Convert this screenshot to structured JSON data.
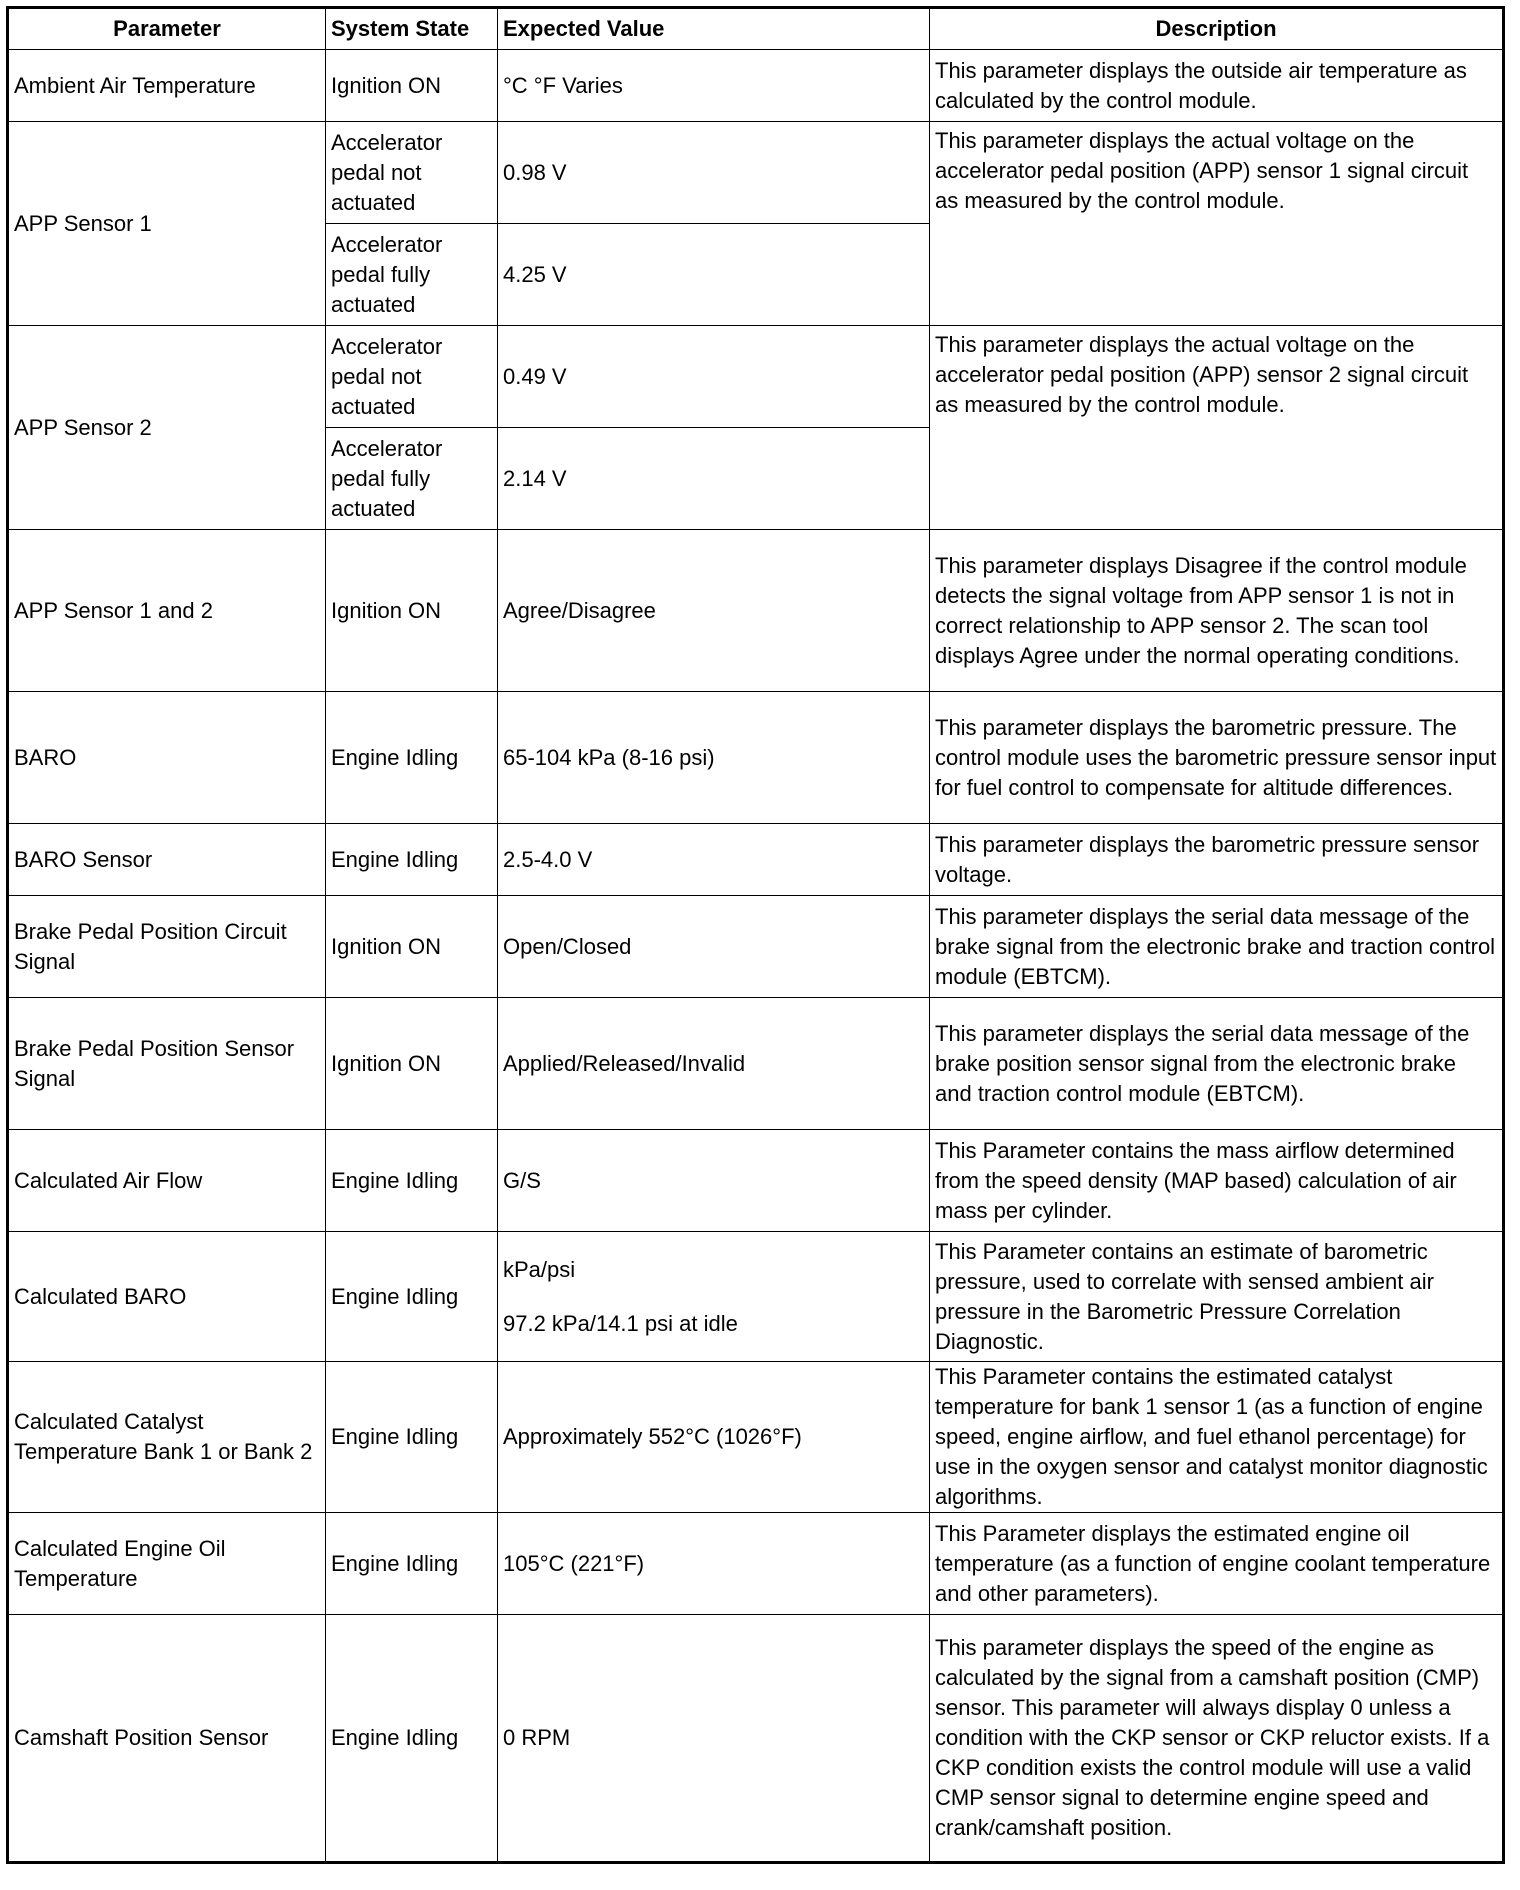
{
  "headers": [
    "Parameter",
    "System State",
    "Expected Value",
    "Description"
  ],
  "rows": [
    {
      "parameter": "Ambient Air Temperature",
      "states": [
        {
          "state": "Ignition ON",
          "value": "°C °F Varies"
        }
      ],
      "description": "This parameter displays the outside air temperature as calculated by the control module."
    },
    {
      "parameter": "APP Sensor 1",
      "states": [
        {
          "state": "Accelerator pedal not actuated",
          "value": "0.98 V"
        },
        {
          "state": "Accelerator pedal fully actuated",
          "value": "4.25 V"
        }
      ],
      "description": "This parameter displays the actual voltage on the accelerator pedal position (APP) sensor 1 signal circuit as measured by the control module."
    },
    {
      "parameter": "APP Sensor 2",
      "states": [
        {
          "state": "Accelerator pedal not actuated",
          "value": "0.49 V"
        },
        {
          "state": "Accelerator pedal fully actuated",
          "value": "2.14 V"
        }
      ],
      "description": "This parameter displays the actual voltage on the accelerator pedal position (APP) sensor 2 signal circuit as measured by the control module."
    },
    {
      "parameter": "APP Sensor 1 and 2",
      "states": [
        {
          "state": "Ignition ON",
          "value": "Agree/Disagree"
        }
      ],
      "description": "This parameter displays Disagree if the control module detects the signal voltage from APP sensor 1 is not in correct relationship to APP sensor 2. The scan tool displays Agree under the normal operating conditions."
    },
    {
      "parameter": "BARO",
      "states": [
        {
          "state": "Engine Idling",
          "value": "65-104 kPa (8-16 psi)"
        }
      ],
      "description": "This parameter displays the barometric pressure. The control module uses the barometric pressure sensor input for fuel control to compensate for altitude differences."
    },
    {
      "parameter": "BARO Sensor",
      "states": [
        {
          "state": "Engine Idling",
          "value": "2.5-4.0 V"
        }
      ],
      "description": "This parameter displays the barometric pressure sensor voltage."
    },
    {
      "parameter": "Brake Pedal Position Circuit Signal",
      "states": [
        {
          "state": "Ignition ON",
          "value": "Open/Closed"
        }
      ],
      "description": "This parameter displays the serial data message of the brake signal from the electronic brake and traction control module (EBTCM)."
    },
    {
      "parameter": "Brake Pedal Position Sensor Signal",
      "states": [
        {
          "state": "Ignition ON",
          "value": "Applied/Released/Invalid"
        }
      ],
      "description": "This parameter displays the serial data message of the brake position sensor signal from the electronic brake and traction control module (EBTCM)."
    },
    {
      "parameter": "Calculated Air Flow",
      "states": [
        {
          "state": "Engine Idling",
          "value": "G/S"
        }
      ],
      "description": "This Parameter contains the mass airflow determined from the speed density (MAP based) calculation of air mass per cylinder."
    },
    {
      "parameter": "Calculated BARO",
      "states": [
        {
          "state": "Engine Idling",
          "value": "kPa/psi",
          "value2": "97.2 kPa/14.1 psi at idle"
        }
      ],
      "description": "This Parameter contains an estimate of barometric pressure, used to correlate with sensed ambient air pressure in the Barometric Pressure Correlation Diagnostic."
    },
    {
      "parameter": "Calculated Catalyst Temperature Bank 1 or Bank 2",
      "states": [
        {
          "state": "Engine Idling",
          "value": "Approximately 552°C (1026°F)"
        }
      ],
      "description": "This Parameter contains the estimated catalyst temperature for bank 1 sensor 1 (as a function of engine speed, engine airflow, and fuel ethanol percentage) for use in the oxygen sensor and catalyst monitor diagnostic algorithms."
    },
    {
      "parameter": "Calculated Engine Oil Temperature",
      "states": [
        {
          "state": "Engine Idling",
          "value": "105°C (221°F)"
        }
      ],
      "description": "This Parameter displays the estimated engine oil temperature (as a function of engine coolant temperature and other parameters)."
    },
    {
      "parameter": "Camshaft Position Sensor",
      "states": [
        {
          "state": "Engine Idling",
          "value": "0 RPM"
        }
      ],
      "description": "This parameter displays the speed of the engine as calculated by the signal from a camshaft position (CMP) sensor. This parameter will always display 0 unless a condition with the CKP sensor or CKP reluctor exists. If a CKP condition exists the control module will use a valid CMP sensor signal to determine engine speed and crank/camshaft position."
    }
  ]
}
